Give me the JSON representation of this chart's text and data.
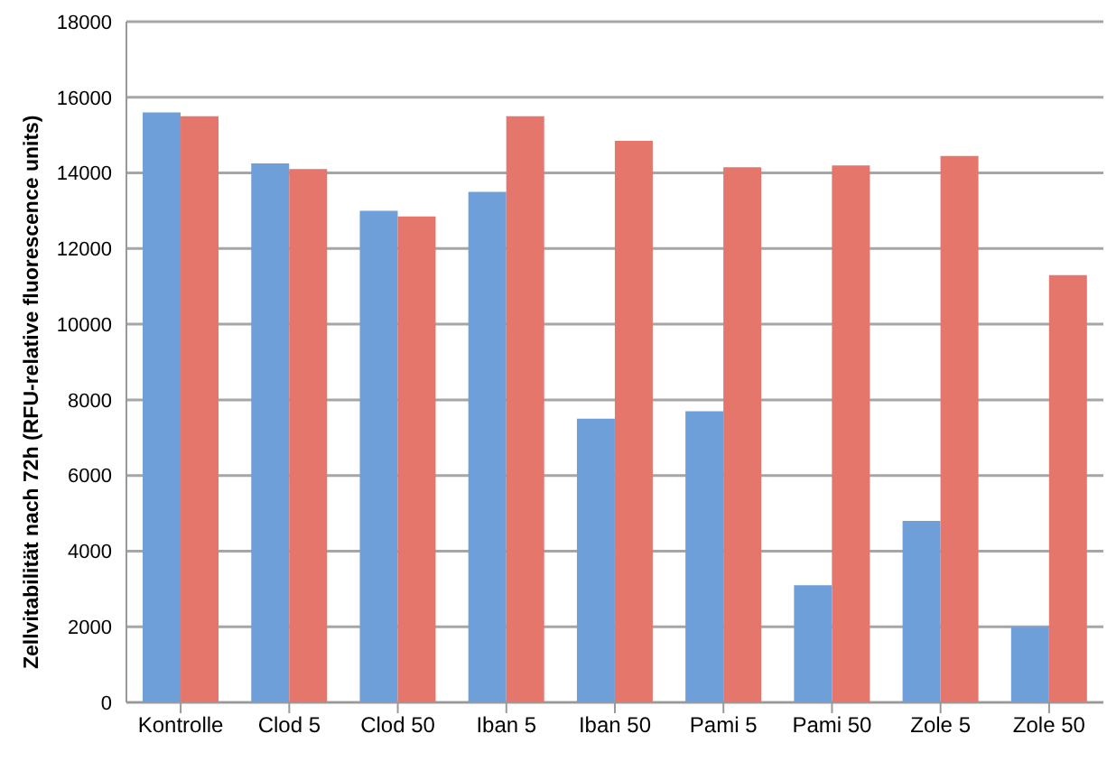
{
  "chart_data": {
    "type": "bar",
    "ylabel": "Zellvitabilität nach 72h (RFU-relative fluorescence units)",
    "categories": [
      "Kontrolle",
      "Clod 5",
      "Clod 50",
      "Iban 5",
      "Iban 50",
      "Pami 5",
      "Pami 50",
      "Zole 5",
      "Zole 50"
    ],
    "series": [
      {
        "color": "#6f9fd8",
        "values": [
          15600,
          14250,
          13000,
          13500,
          7500,
          7700,
          3100,
          4800,
          2000
        ]
      },
      {
        "color": "#e4766c",
        "values": [
          15500,
          14100,
          12850,
          15500,
          14850,
          14150,
          14200,
          14450,
          11300
        ]
      }
    ],
    "ylim": [
      0,
      18000
    ],
    "yticks": [
      0,
      2000,
      4000,
      6000,
      8000,
      10000,
      12000,
      14000,
      16000,
      18000
    ],
    "grid": "y",
    "legend": false
  }
}
